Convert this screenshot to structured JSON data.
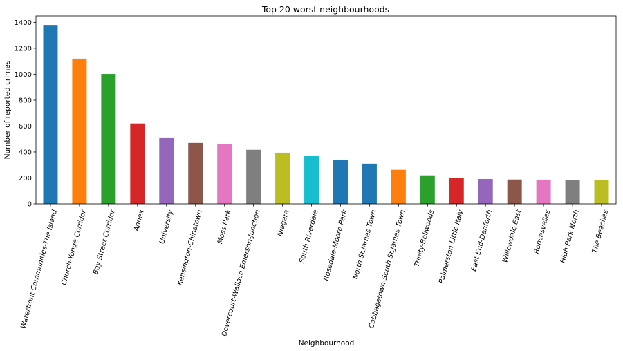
{
  "chart_data": {
    "type": "bar",
    "title": "Top 20 worst neighbourhoods",
    "xlabel": "Neighbourhood",
    "ylabel": "Number of reported crimes",
    "ylim": [
      0,
      1450
    ],
    "yticks": [
      0,
      200,
      400,
      600,
      800,
      1000,
      1200,
      1400
    ],
    "grid": false,
    "legend": "none",
    "categories": [
      "Waterfront Communities-The Island",
      "Church-Yonge Corridor",
      "Bay Street Corridor",
      "Annex",
      "University",
      "Kensington-Chinatown",
      "Moss Park",
      "Dovercourt-Wallace Emerson-Junction",
      "Niagara",
      "South Riverdale",
      "Rosedale-Moore Park",
      "North St.James Town",
      "Cabbagetown-South St.James Town",
      "Trinity-Bellwoods",
      "Palmerston-Little Italy",
      "East End-Danforth",
      "Willowdale East",
      "Roncesvalles",
      "High Park North",
      "The Beaches"
    ],
    "values": [
      1380,
      1120,
      1002,
      620,
      507,
      470,
      463,
      417,
      395,
      368,
      340,
      310,
      263,
      220,
      200,
      192,
      188,
      187,
      186,
      183
    ],
    "colors": [
      "#1f77b4",
      "#ff7f0e",
      "#2ca02c",
      "#d62728",
      "#9467bd",
      "#8c564b",
      "#e377c2",
      "#7f7f7f",
      "#bcbd22",
      "#17becf",
      "#1f77b4",
      "#1f77b4",
      "#ff7f0e",
      "#2ca02c",
      "#d62728",
      "#9467bd",
      "#8c564b",
      "#e377c2",
      "#7f7f7f",
      "#bcbd22"
    ]
  }
}
